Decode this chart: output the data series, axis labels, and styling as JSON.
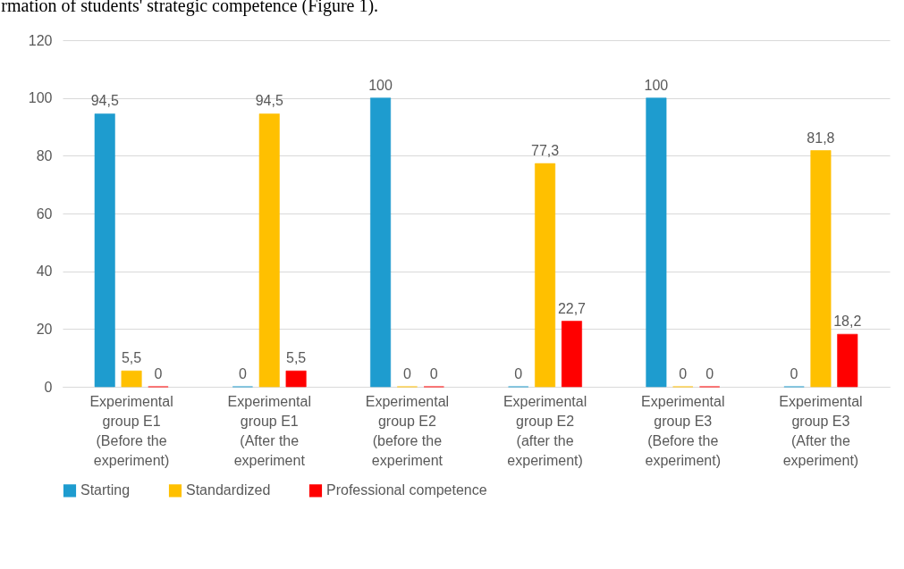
{
  "chart_data": {
    "type": "bar",
    "annotations": [
      "rmation of students' strategic competence (Figure 1)."
    ],
    "categories": [
      "Experimental group E1 (Before the experiment)",
      "Experimental group E1 (After the experiment",
      "Experimental group E2 (before the experiment",
      "Experimental group E2 (after the experiment)",
      "Experimental group E3 (Before the experiment)",
      "Experimental group E3 (After the experiment)"
    ],
    "series": [
      {
        "name": "Starting",
        "color": "#1e9ccf",
        "values": [
          94.5,
          0,
          100,
          0,
          100,
          0
        ],
        "value_labels": [
          "94,5",
          "0",
          "100",
          "0",
          "100",
          "0"
        ]
      },
      {
        "name": "Standardized",
        "color": "#ffc000",
        "values": [
          5.5,
          94.5,
          0,
          77.3,
          0,
          81.8
        ],
        "value_labels": [
          "5,5",
          "94,5",
          "0",
          "77,3",
          "0",
          "81,8"
        ]
      },
      {
        "name": "Professional competence",
        "color": "#ff0000",
        "values": [
          0,
          5.5,
          0,
          22.7,
          0,
          18.2
        ],
        "value_labels": [
          "0",
          "5,5",
          "0",
          "22,7",
          "0",
          "18,2"
        ]
      }
    ],
    "ylim": [
      0,
      120
    ],
    "yticks": [
      0,
      20,
      40,
      60,
      80,
      100,
      120
    ],
    "grid": "y",
    "legend": "bottom"
  }
}
